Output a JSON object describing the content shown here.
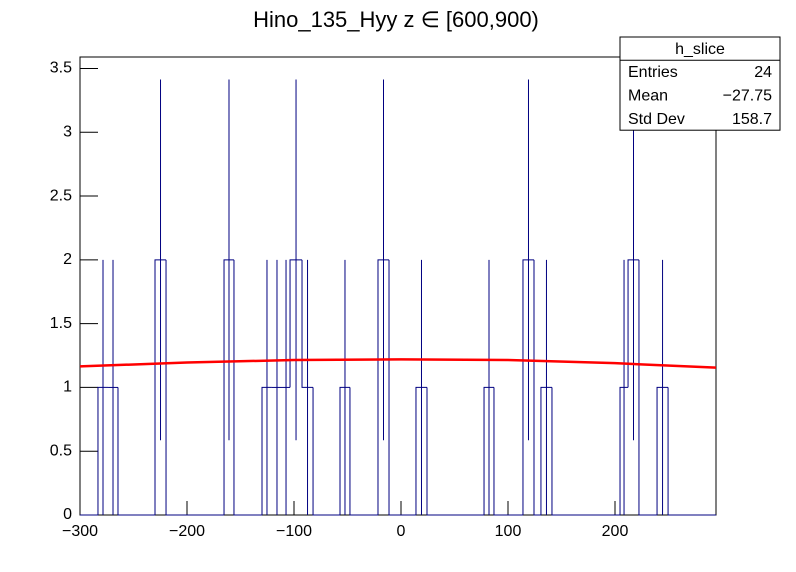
{
  "chart_data": {
    "type": "histogram",
    "title": "Hino_135_Hyy z  ∈ [600,900)",
    "bins": [
      -300,
      -283.2,
      -273.8,
      -264.5,
      -229.9,
      -219.6,
      -165.4,
      -156.1,
      -129.9,
      -120.6,
      -111.2,
      -103.7,
      -92.5,
      -82.2,
      -57,
      -47.7,
      -21.5,
      -11.2,
      14,
      24.3,
      77.6,
      86.9,
      114,
      124.3,
      130.8,
      141.1,
      204.7,
      212.2,
      222.4,
      239.3,
      249.6,
      294.4
    ],
    "counts": [
      0,
      1,
      1,
      0,
      2,
      0,
      2,
      0,
      1,
      1,
      1,
      2,
      1,
      0,
      1,
      0,
      2,
      0,
      1,
      0,
      1,
      0,
      2,
      0,
      1,
      0,
      1,
      2,
      0,
      1,
      0
    ],
    "errors": [
      0,
      1,
      1,
      0,
      1.414,
      0,
      1.414,
      0,
      1,
      1,
      1,
      1.414,
      1,
      0,
      1,
      0,
      1.414,
      0,
      1,
      0,
      1,
      0,
      1.414,
      0,
      1,
      0,
      1,
      1.414,
      0,
      1,
      0
    ],
    "color": "#000080",
    "fit": {
      "color": "#ff0000",
      "x": [
        -300,
        -200,
        -100,
        0,
        100,
        200,
        294.4
      ],
      "values": [
        1.165,
        1.195,
        1.215,
        1.22,
        1.215,
        1.19,
        1.155
      ]
    },
    "xlim": [
      -300,
      294.4
    ],
    "ylim": [
      0,
      3.59
    ],
    "xticks": [
      {
        "value": -300,
        "label": "−300"
      },
      {
        "value": -200,
        "label": "−200"
      },
      {
        "value": -100,
        "label": "−100"
      },
      0,
      100,
      200
    ],
    "yticks": [
      0,
      0.5,
      1,
      1.5,
      2,
      2.5,
      3,
      3.5
    ],
    "stats": {
      "title": "h_slice",
      "rows": [
        [
          "Entries",
          "24"
        ],
        [
          "Mean",
          "−27.75"
        ],
        [
          "Std Dev",
          "158.7"
        ]
      ]
    }
  }
}
